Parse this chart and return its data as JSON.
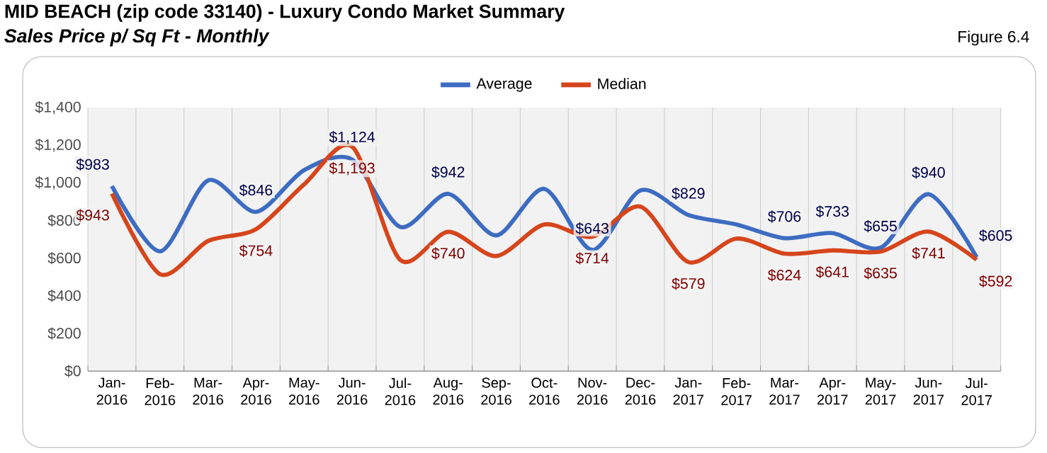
{
  "chart_data": {
    "type": "line",
    "title": "MID BEACH (zip code 33140) - Luxury Condo Market Summary",
    "subtitle": "Sales Price  p/ Sq Ft - Monthly",
    "annotations": [
      "Figure 6.4"
    ],
    "categories": [
      "Jan-2016",
      "Feb-2016",
      "Mar-2016",
      "Apr-2016",
      "May-2016",
      "Jun-2016",
      "Jul-2016",
      "Aug-2016",
      "Sep-2016",
      "Oct-2016",
      "Nov-2016",
      "Dec-2016",
      "Jan-2017",
      "Feb-2017",
      "Mar-2017",
      "Apr-2017",
      "May-2017",
      "Jun-2017",
      "Jul-2017"
    ],
    "series": [
      {
        "name": "Average",
        "color": "#3d6cc2",
        "values": [
          983,
          636,
          1013,
          846,
          1068,
          1124,
          766,
          942,
          721,
          968,
          643,
          960,
          829,
          779,
          706,
          733,
          655,
          940,
          605
        ],
        "value_labels": [
          "$983",
          null,
          null,
          "$846",
          null,
          "$1,124",
          null,
          "$942",
          null,
          null,
          "$643",
          null,
          "$829",
          null,
          "$706",
          "$733",
          "$655",
          "$940",
          "$605"
        ]
      },
      {
        "name": "Median",
        "color": "#d6451b",
        "values": [
          943,
          515,
          691,
          754,
          992,
          1193,
          591,
          740,
          611,
          779,
          714,
          874,
          579,
          704,
          624,
          641,
          635,
          741,
          592
        ],
        "value_labels": [
          "$943",
          null,
          null,
          "$754",
          null,
          "$1,193",
          null,
          "$740",
          null,
          null,
          "$714",
          null,
          "$579",
          null,
          "$624",
          "$641",
          "$635",
          "$741",
          "$592"
        ]
      }
    ],
    "ylim": [
      0,
      1400
    ],
    "yticks": [
      {
        "value": 0,
        "label": "$0"
      },
      {
        "value": 200,
        "label": "$200"
      },
      {
        "value": 400,
        "label": "$400"
      },
      {
        "value": 600,
        "label": "$600"
      },
      {
        "value": 800,
        "label": "$800"
      },
      {
        "value": 1000,
        "label": "$1,000"
      },
      {
        "value": 1200,
        "label": "$1,200"
      },
      {
        "value": 1400,
        "label": "$1,400"
      }
    ],
    "grid": "x",
    "legend": "top",
    "marker": "none",
    "line_style": "solid"
  }
}
